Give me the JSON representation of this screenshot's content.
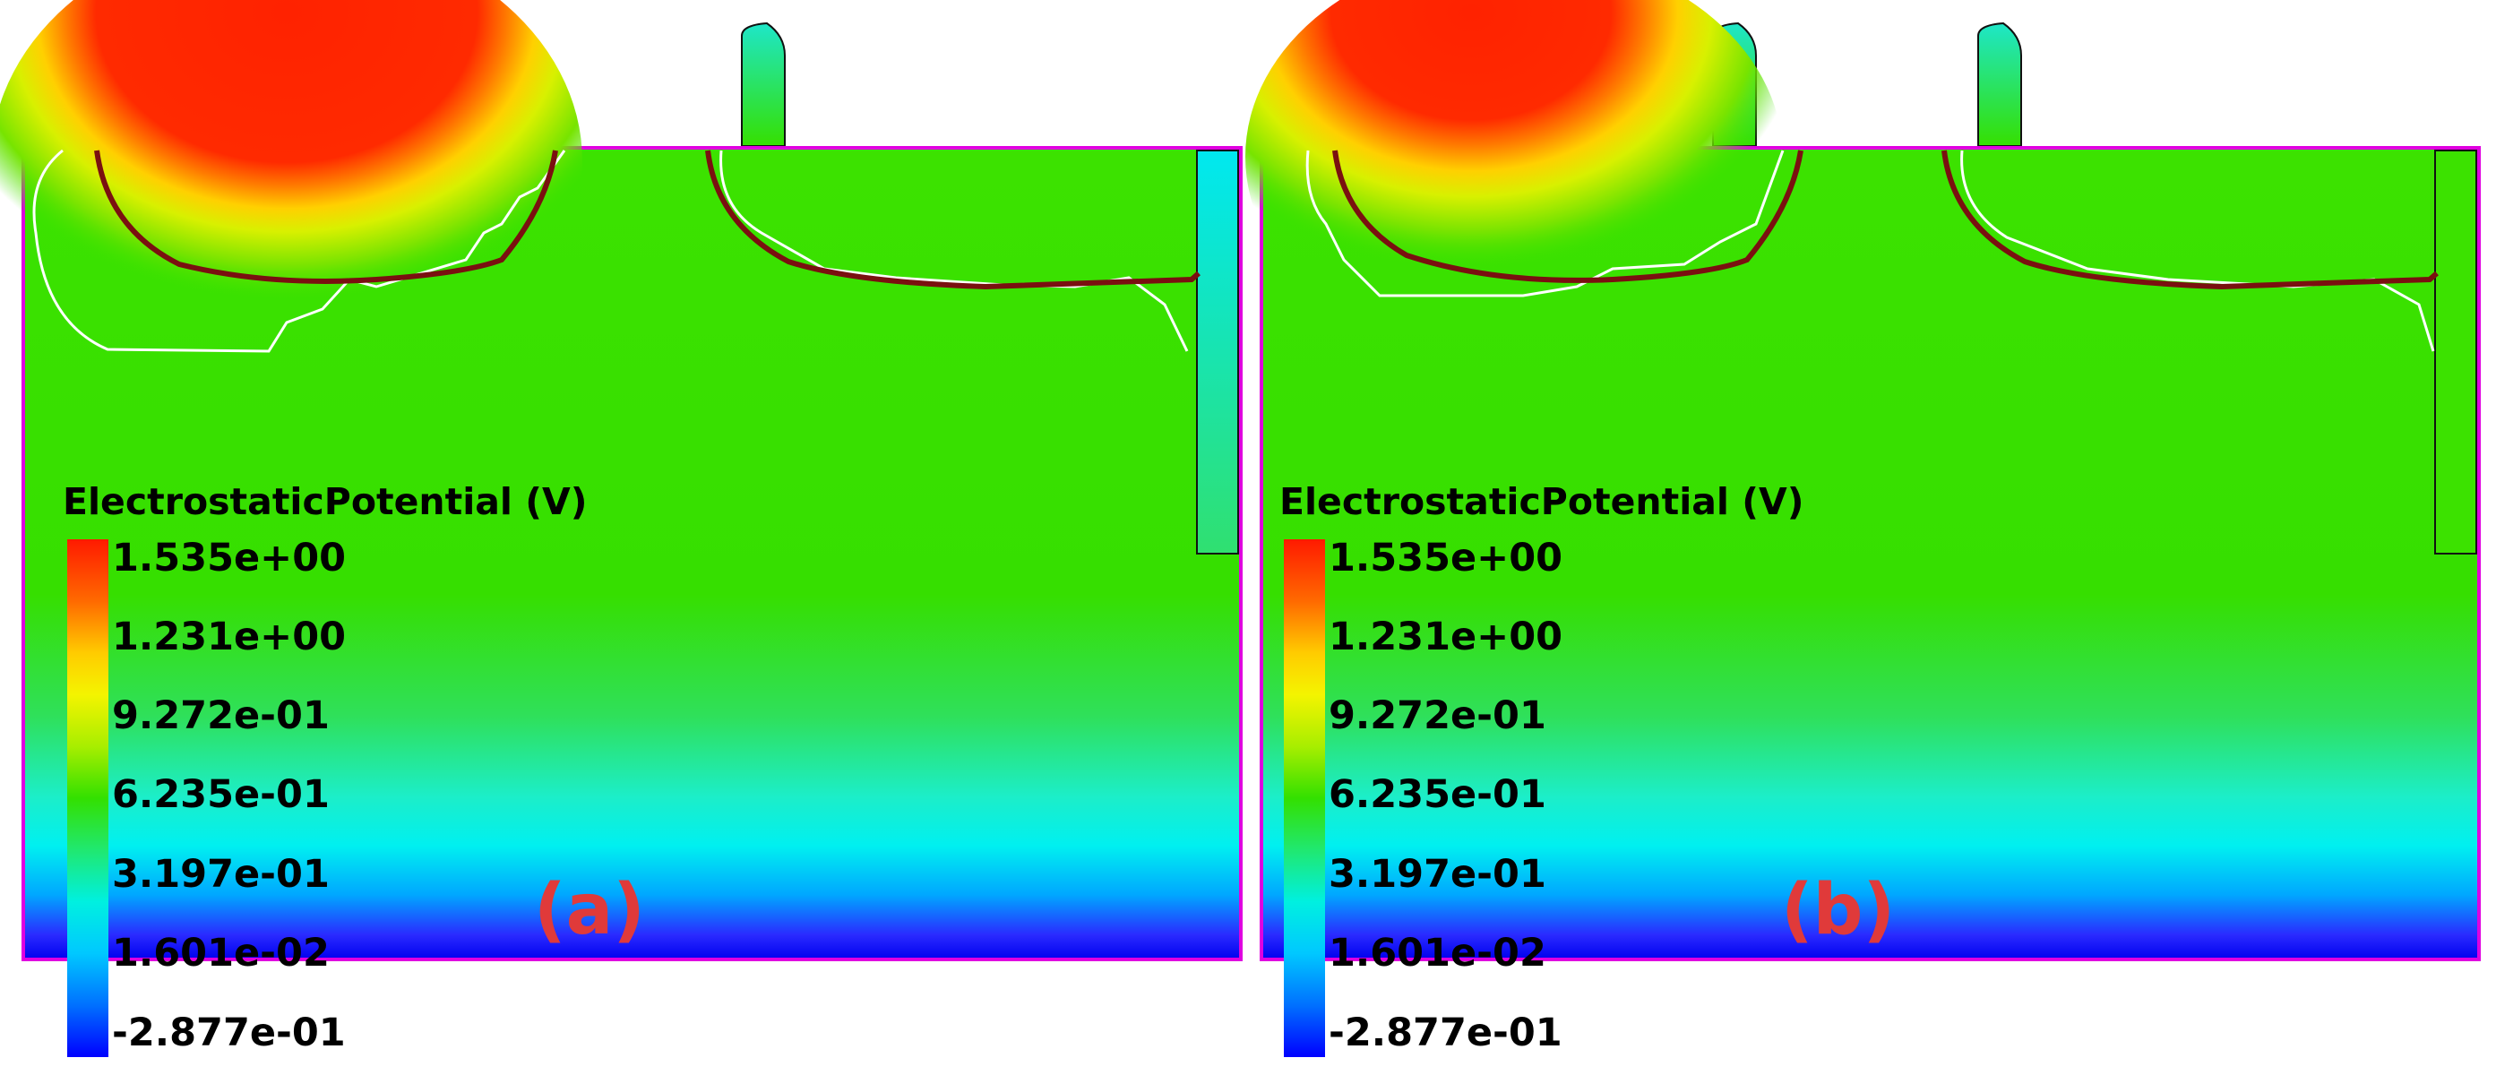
{
  "panels": [
    {
      "label": "(a)",
      "legend": {
        "title": "ElectrostaticPotential (V)",
        "ticks": [
          "1.535e+00",
          "1.231e+00",
          "9.272e-01",
          "6.235e-01",
          "3.197e-01",
          "1.601e-02",
          "-2.877e-01"
        ]
      }
    },
    {
      "label": "(b)",
      "legend": {
        "title": "ElectrostaticPotential (V)",
        "ticks": [
          "1.535e+00",
          "1.231e+00",
          "9.272e-01",
          "6.235e-01",
          "3.197e-01",
          "1.601e-02",
          "-2.877e-01"
        ]
      }
    }
  ],
  "colors": {
    "red": "#ff2200",
    "yellow": "#f4f400",
    "green": "#33e000",
    "cyan": "#00f0f0",
    "blue": "#0000ff",
    "outline_magenta": "#e000e0",
    "junction_line": "#7a1010",
    "depletion_edge": "#ffffff",
    "label_red": "#e03a3a"
  }
}
